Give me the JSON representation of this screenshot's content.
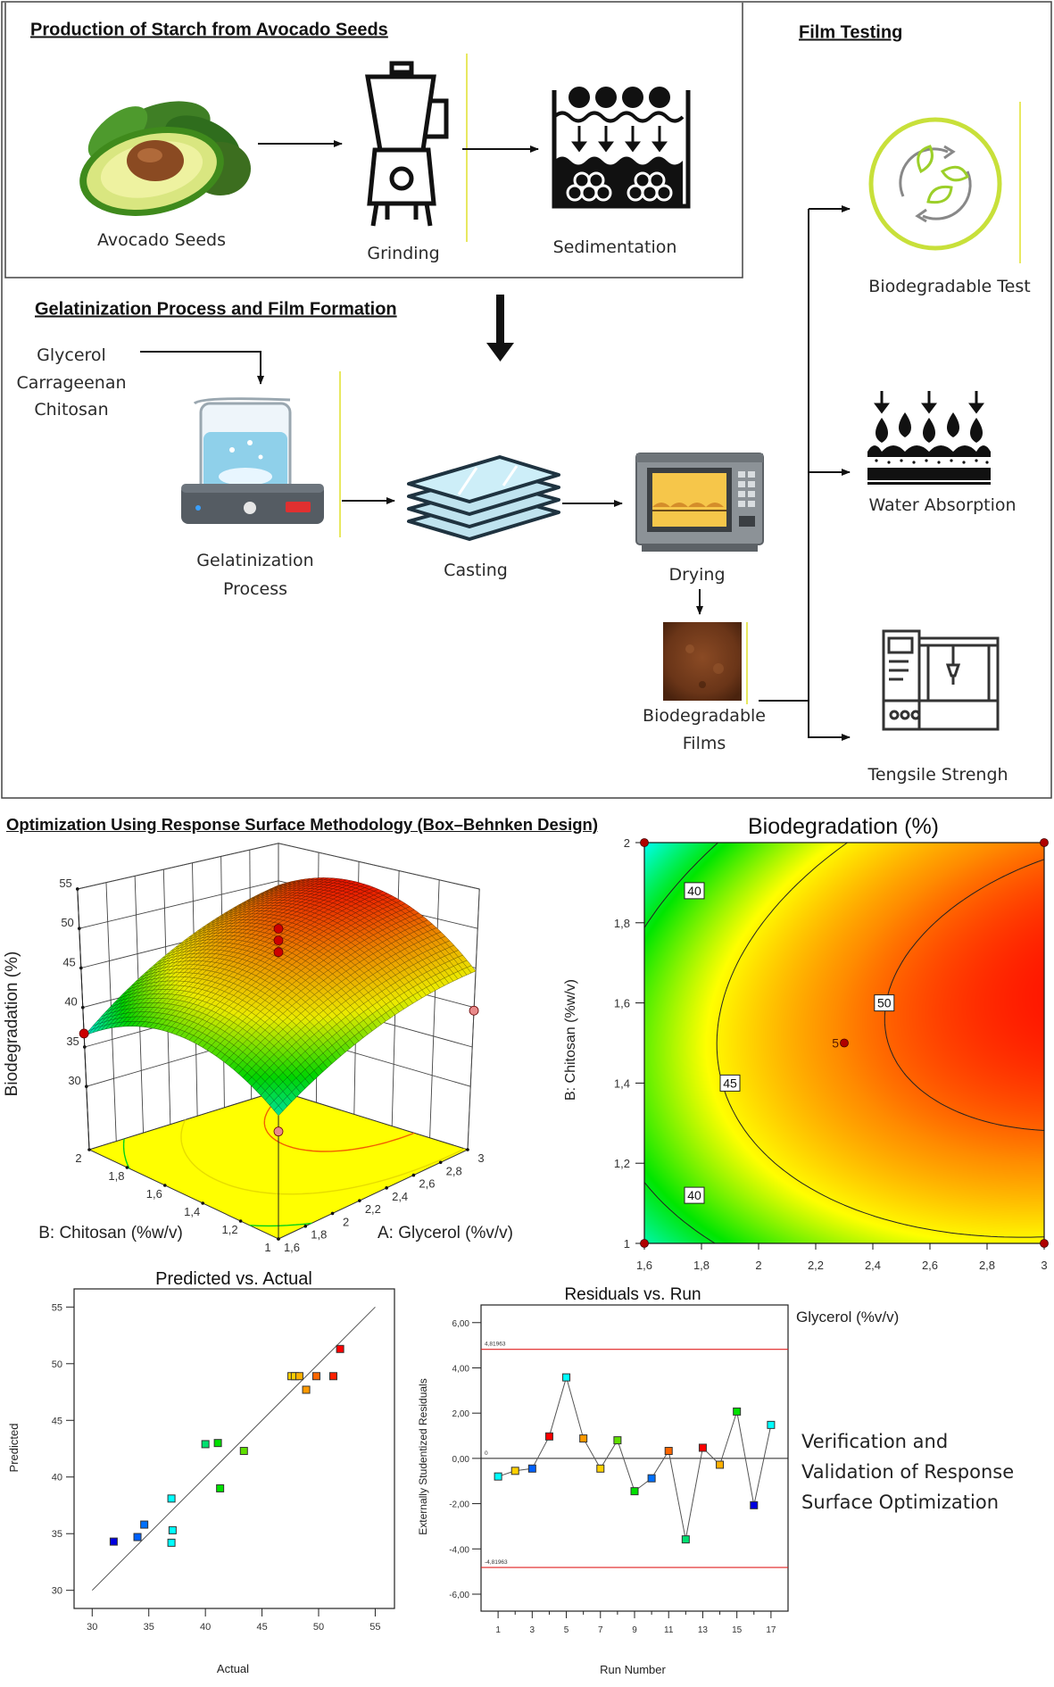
{
  "diagram": {
    "section1_title": "Production of Starch from Avocado Seeds",
    "section2_title": "Gelatinization Process and Film Formation",
    "section3_title": "Film Testing",
    "steps": {
      "avocado": "Avocado Seeds",
      "grinding": "Grinding",
      "sedimentation": "Sedimentation",
      "gelatinization_line1": "Gelatinization",
      "gelatinization_line2": "Process",
      "casting": "Casting",
      "drying": "Drying",
      "films_line1": "Biodegradable",
      "films_line2": "Films"
    },
    "ingredients": [
      "Glycerol",
      "Carrageenan",
      "Chitosan"
    ],
    "tests": [
      "Biodegradable Test",
      "Water Absorption",
      "Tengsile Strengh"
    ],
    "icons": [
      "avocado-icon",
      "blender-icon",
      "sedimentation-icon",
      "hotplate-beaker-icon",
      "glass-plates-icon",
      "oven-icon",
      "film-sample-icon",
      "biodegradable-cycle-icon",
      "water-drops-icon",
      "tensile-machine-icon"
    ],
    "colors": {
      "accent_line": "#e8e860",
      "bio_ring": "#c8e03a"
    }
  },
  "optimization_title": "Optimization Using Response Surface Methodology (Box–Behnken Design)",
  "side_text": [
    "Verification and",
    "Validation of Response",
    "Surface Optimization"
  ],
  "color_scale": {
    "min": 32,
    "max": 53,
    "colors": [
      "#0000ff",
      "#00ffff",
      "#00e600",
      "#ffff00",
      "#ff8c00",
      "#ff0000"
    ]
  },
  "chart_data": [
    {
      "type": "surface3d",
      "zlabel": "Biodegradation (%)",
      "xlabel": "A: Glycerol (%v/v)",
      "ylabel": "B: Chitosan (%w/v)",
      "xlim": [
        1.6,
        3
      ],
      "ylim": [
        1,
        2
      ],
      "zlim": [
        30,
        55
      ],
      "x_ticks": [
        1.6,
        1.8,
        2,
        2.2,
        2.4,
        2.6,
        2.8,
        3
      ],
      "x_tick_labels": [
        "1,6",
        "1,8",
        "2",
        "2,2",
        "2,4",
        "2,6",
        "2,8",
        "3"
      ],
      "y_ticks": [
        1,
        1.2,
        1.4,
        1.6,
        1.8,
        2
      ],
      "y_tick_labels": [
        "1",
        "1,2",
        "1,4",
        "1,6",
        "1,8",
        "2"
      ],
      "z_ticks": [
        30,
        35,
        40,
        45,
        50,
        55
      ],
      "z_tick_labels": [
        "30",
        "35",
        "40",
        "45",
        "50",
        "55"
      ],
      "surface_model": {
        "form": "coded quadratic",
        "intercept": 49,
        "A": 5,
        "B": 0.9,
        "AB": 1.5,
        "A2": -2,
        "B2": -5
      },
      "floor_contour_levels": [
        40,
        45,
        50
      ],
      "floor_color": "#ffff00",
      "design_points": [
        {
          "a": 2.3,
          "b": 1.5,
          "z": 51.3,
          "color": "#cc0000"
        },
        {
          "a": 2.3,
          "b": 1.5,
          "z": 49.8,
          "color": "#cc0000"
        },
        {
          "a": 2.3,
          "b": 1.5,
          "z": 48.3,
          "color": "#cc0000"
        },
        {
          "a": 1.6,
          "b": 2,
          "z": 36.7,
          "color": "#cc0000"
        },
        {
          "a": 3,
          "b": 1,
          "z": 39.6,
          "color": "#e88a8a"
        },
        {
          "a": 1.6,
          "b": 1,
          "z": 35.6,
          "color": "#e88a8a"
        }
      ]
    },
    {
      "type": "contour",
      "title": "Biodegradation (%)",
      "xlabel": "Glycerol (%v/v)",
      "ylabel": "B: Chitosan (%w/v)",
      "xlim": [
        1.6,
        3
      ],
      "ylim": [
        1,
        2
      ],
      "x_ticks": [
        1.6,
        1.8,
        2,
        2.2,
        2.4,
        2.6,
        2.8,
        3
      ],
      "x_tick_labels": [
        "1,6",
        "1,8",
        "2",
        "2,2",
        "2,4",
        "2,6",
        "2,8",
        "3"
      ],
      "y_ticks": [
        1,
        1.2,
        1.4,
        1.6,
        1.8,
        2
      ],
      "y_tick_labels": [
        "1",
        "1,2",
        "1,4",
        "1,6",
        "1,8",
        "2"
      ],
      "levels": [
        40,
        45,
        50
      ],
      "level_labels": [
        {
          "text": "40",
          "a": 1.775,
          "b": 1.88
        },
        {
          "text": "40",
          "a": 1.775,
          "b": 1.12
        },
        {
          "text": "45",
          "a": 1.9,
          "b": 1.4
        },
        {
          "text": "50",
          "a": 2.44,
          "b": 1.6
        }
      ],
      "design_points": [
        {
          "a": 1.6,
          "b": 2
        },
        {
          "a": 3,
          "b": 2
        },
        {
          "a": 1.6,
          "b": 1
        },
        {
          "a": 3,
          "b": 1
        },
        {
          "a": 2.3,
          "b": 1.5,
          "label": "5"
        }
      ],
      "point_color": "#b00000"
    },
    {
      "type": "scatter",
      "title": "Predicted vs. Actual",
      "xlabel": "Actual",
      "ylabel": "Predicted",
      "xlim": [
        28.4,
        56.7
      ],
      "ylim": [
        28.4,
        56.6
      ],
      "x_ticks": [
        30,
        35,
        40,
        45,
        50,
        55
      ],
      "y_ticks": [
        30,
        35,
        40,
        45,
        50,
        55
      ],
      "reference_line": [
        [
          30,
          30
        ],
        [
          55,
          55
        ]
      ],
      "points": [
        {
          "x": 31.9,
          "y": 34.3,
          "color": "#0000e0"
        },
        {
          "x": 34.0,
          "y": 34.7,
          "color": "#0060ff"
        },
        {
          "x": 34.6,
          "y": 35.8,
          "color": "#0070ff"
        },
        {
          "x": 37.0,
          "y": 38.1,
          "color": "#00ffff"
        },
        {
          "x": 37.1,
          "y": 35.3,
          "color": "#00ffff"
        },
        {
          "x": 37.0,
          "y": 34.2,
          "color": "#00ffff"
        },
        {
          "x": 40.0,
          "y": 42.9,
          "color": "#00e070"
        },
        {
          "x": 41.1,
          "y": 43.0,
          "color": "#00e000"
        },
        {
          "x": 41.3,
          "y": 39.0,
          "color": "#00e000"
        },
        {
          "x": 43.4,
          "y": 42.3,
          "color": "#60e000"
        },
        {
          "x": 47.6,
          "y": 48.9,
          "color": "#ffd000"
        },
        {
          "x": 47.9,
          "y": 48.9,
          "color": "#ffd000"
        },
        {
          "x": 48.3,
          "y": 48.9,
          "color": "#ffb000"
        },
        {
          "x": 48.9,
          "y": 47.7,
          "color": "#ff9900"
        },
        {
          "x": 49.8,
          "y": 48.9,
          "color": "#ff6600"
        },
        {
          "x": 51.3,
          "y": 48.9,
          "color": "#ff2000"
        },
        {
          "x": 51.9,
          "y": 51.3,
          "color": "#ff0000"
        }
      ]
    },
    {
      "type": "line",
      "title": "Residuals vs. Run",
      "xlabel": "Run Number",
      "ylabel": "Externally Studentized Residuals",
      "xlim": [
        0,
        18
      ],
      "ylim": [
        -6.75,
        6.78
      ],
      "x_ticks": [
        1,
        2,
        3,
        4,
        5,
        6,
        7,
        8,
        9,
        10,
        11,
        12,
        13,
        14,
        15,
        16,
        17
      ],
      "x_tick_labels": [
        "1",
        "",
        "3",
        "",
        "5",
        "",
        "7",
        "",
        "9",
        "",
        "11",
        "",
        "13",
        "",
        "15",
        "",
        "17"
      ],
      "y_ticks": [
        -6,
        -4,
        -2,
        0,
        2,
        4,
        6
      ],
      "y_tick_labels": [
        "-6,00",
        "-4,00",
        "-2,00",
        "0,00",
        "2,00",
        "4,00",
        "6,00"
      ],
      "limits": [
        {
          "value": 4.81963,
          "label": "4,81963"
        },
        {
          "value": -4.81963,
          "label": "-4,81963"
        }
      ],
      "limit_color": "#e02020",
      "zero_label": "0",
      "x": [
        1,
        2,
        3,
        4,
        5,
        6,
        7,
        8,
        9,
        10,
        11,
        12,
        13,
        14,
        15,
        16,
        17
      ],
      "y": [
        -0.8,
        -0.55,
        -0.45,
        0.97,
        3.58,
        0.88,
        -0.45,
        0.8,
        -1.45,
        -0.88,
        0.33,
        -3.58,
        0.47,
        -0.28,
        2.07,
        -2.07,
        1.48
      ],
      "colors": [
        "#00ffff",
        "#ffd000",
        "#0060ff",
        "#ff0000",
        "#00ffff",
        "#ff9900",
        "#ffd000",
        "#60e000",
        "#00e000",
        "#0070ff",
        "#ff6600",
        "#00e070",
        "#ff0000",
        "#ffb000",
        "#00e000",
        "#0000e0",
        "#00ffff"
      ]
    }
  ]
}
